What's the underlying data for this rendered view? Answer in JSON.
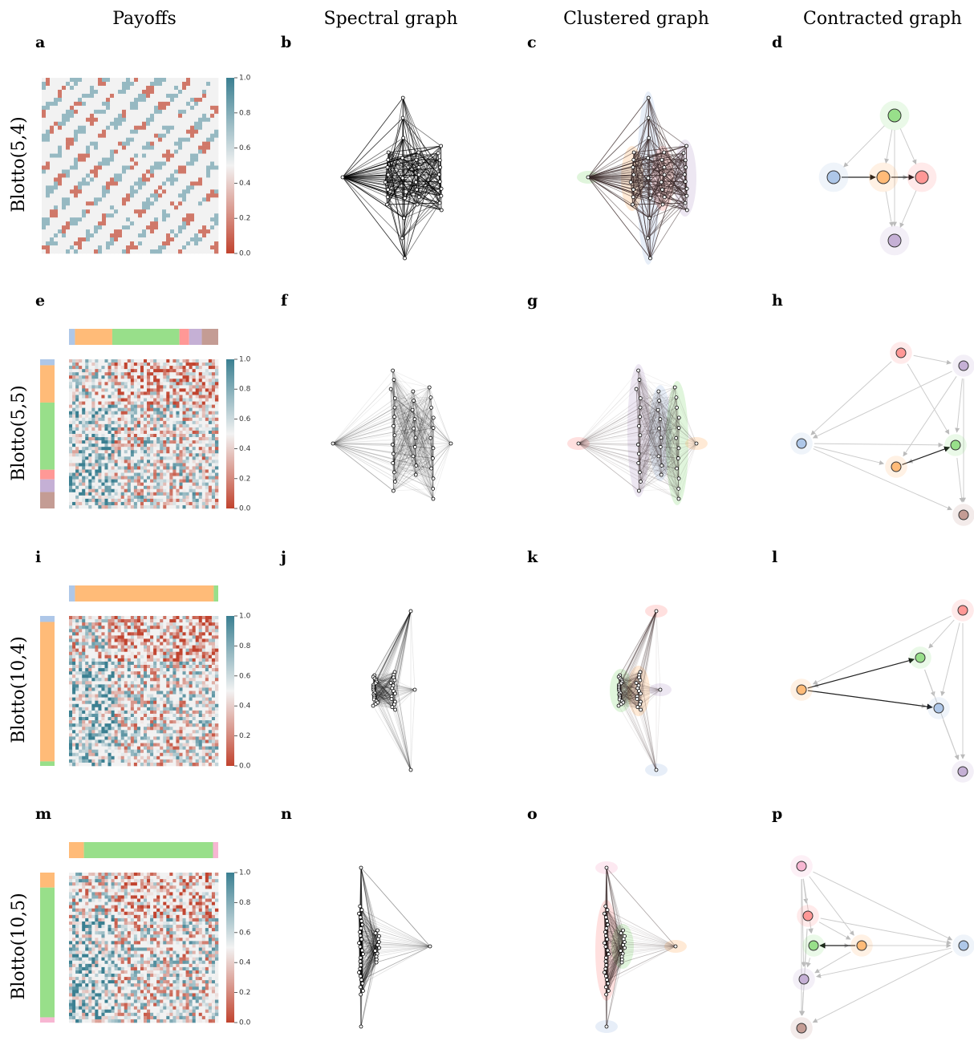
{
  "columns": [
    "Payoffs",
    "Spectral graph",
    "Clustered graph",
    "Contracted graph"
  ],
  "colorbar": {
    "ticks": [
      {
        "value": 0,
        "label": "0.0"
      },
      {
        "value": 0.2,
        "label": "0.2"
      },
      {
        "value": 0.4,
        "label": "0.4"
      },
      {
        "value": 0.6,
        "label": "0.6"
      },
      {
        "value": 0.8,
        "label": "0.8"
      },
      {
        "value": 1,
        "label": "1.0"
      }
    ],
    "low": "#c1432e",
    "mid": "#f2f2f2",
    "high": "#3a7f91"
  },
  "rows": [
    {
      "label": "Blotto(5,4)",
      "panels": [
        "a",
        "b",
        "c",
        "d"
      ],
      "clusters": [],
      "node_colors": [
        "#98df8a",
        "#aec7e8",
        "#ffbb78",
        "#ff9896",
        "#c5b0d5"
      ]
    },
    {
      "label": "Blotto(5,5)",
      "panels": [
        "e",
        "f",
        "g",
        "h"
      ],
      "clusters": [
        {
          "color": "#aec7e8",
          "share": 0.04
        },
        {
          "color": "#ffbb78",
          "share": 0.25
        },
        {
          "color": "#98df8a",
          "share": 0.45
        },
        {
          "color": "#ff9896",
          "share": 0.065
        },
        {
          "color": "#c5b0d5",
          "share": 0.085
        },
        {
          "color": "#c49c94",
          "share": 0.11
        }
      ],
      "node_colors": [
        "#ff9896",
        "#c5b0d5",
        "#aec7e8",
        "#98df8a",
        "#ffbb78",
        "#c49c94"
      ]
    },
    {
      "label": "Blotto(10,4)",
      "panels": [
        "i",
        "j",
        "k",
        "l"
      ],
      "clusters": [
        {
          "color": "#aec7e8",
          "share": 0.04
        },
        {
          "color": "#ffbb78",
          "share": 0.93
        },
        {
          "color": "#98df8a",
          "share": 0.03
        }
      ],
      "node_colors": [
        "#ff9896",
        "#98df8a",
        "#ffbb78",
        "#aec7e8",
        "#c5b0d5"
      ]
    },
    {
      "label": "Blotto(10,5)",
      "panels": [
        "m",
        "n",
        "o",
        "p"
      ],
      "clusters": [
        {
          "color": "#ffbb78",
          "share": 0.1
        },
        {
          "color": "#98df8a",
          "share": 0.865
        },
        {
          "color": "#f7b6d2",
          "share": 0.035
        }
      ],
      "node_colors": [
        "#f7b6d2",
        "#ff9896",
        "#98df8a",
        "#ffbb78",
        "#aec7e8",
        "#c5b0d5",
        "#c49c94"
      ]
    }
  ]
}
